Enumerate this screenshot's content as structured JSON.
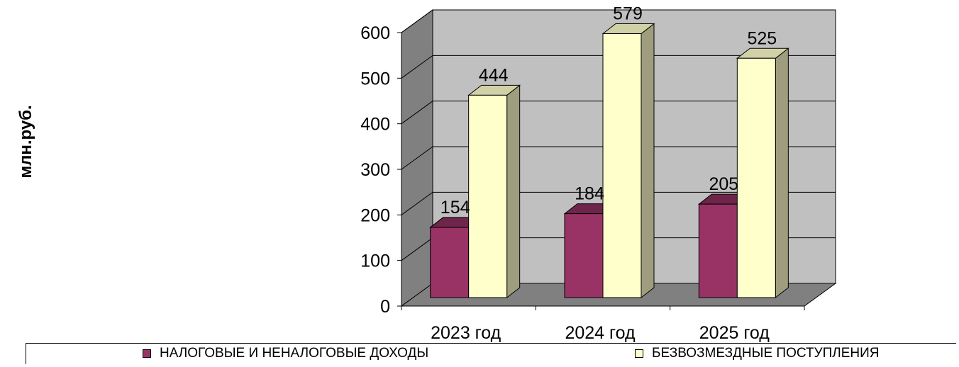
{
  "chart_data": {
    "type": "bar",
    "categories": [
      "2023 год",
      "2024 год",
      "2025 год"
    ],
    "series": [
      {
        "name": "НАЛОГОВЫЕ И НЕНАЛОГОВЫЕ ДОХОДЫ",
        "values": [
          154,
          184,
          205
        ],
        "color": "#993366"
      },
      {
        "name": "БЕЗВОЗМЕЗДНЫЕ  ПОСТУПЛЕНИЯ",
        "values": [
          444,
          579,
          525
        ],
        "color": "#FFFFCC"
      }
    ],
    "ylabel": "млн.руб.",
    "xlabel": "",
    "ylim": [
      0,
      600
    ],
    "yticks": [
      0,
      100,
      200,
      300,
      400,
      500,
      600
    ],
    "grid": true,
    "legend": "bottom",
    "style": "3d-clustered-column"
  }
}
